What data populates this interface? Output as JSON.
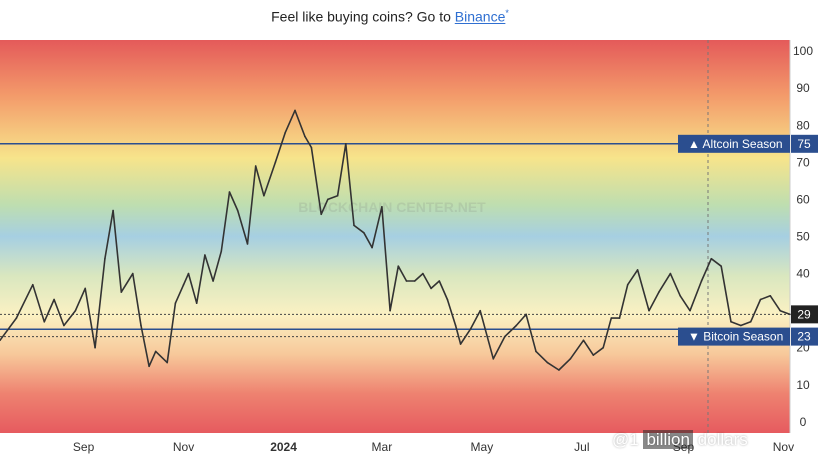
{
  "promo": {
    "text": "Feel like buying coins? Go to",
    "link_label": "Binance",
    "ext_mark": "*"
  },
  "chart_data": {
    "type": "line",
    "title": "",
    "xlabel": "",
    "ylabel": "",
    "ylim": [
      -3,
      103
    ],
    "y_ticks": [
      0,
      10,
      20,
      30,
      40,
      50,
      60,
      70,
      80,
      90,
      100
    ],
    "x_tick_labels": [
      {
        "label": "Sep",
        "x": "2023-09-01"
      },
      {
        "label": "Nov",
        "x": "2023-11-01"
      },
      {
        "label": "2024",
        "x": "2024-01-01"
      },
      {
        "label": "Mar",
        "x": "2024-03-01"
      },
      {
        "label": "May",
        "x": "2024-05-01"
      },
      {
        "label": "Jul",
        "x": "2024-07-01"
      },
      {
        "label": "Sep",
        "x": "2024-09-01"
      },
      {
        "label": "Nov",
        "x": "2024-11-01"
      }
    ],
    "x_range": [
      "2023-07-12",
      "2024-11-05"
    ],
    "grid": false,
    "reference_lines": [
      {
        "label": "Altcoin Season",
        "value": 75,
        "color": "#2b4e8f",
        "marker": "▲"
      },
      {
        "label": "Bitcoin Season",
        "value": 25,
        "color": "#2b4e8f",
        "marker": "▼"
      }
    ],
    "price_labels": [
      {
        "value": 29,
        "text": "29"
      },
      {
        "value": 23,
        "text": "23"
      }
    ],
    "marker_labels": [
      {
        "value": 75,
        "text": "75"
      },
      {
        "value": 23,
        "text": "23"
      }
    ],
    "series": [
      {
        "color": "#333333",
        "x": [
          "2023-07-12",
          "2023-07-22",
          "2023-08-01",
          "2023-08-08",
          "2023-08-14",
          "2023-08-20",
          "2023-08-27",
          "2023-09-02",
          "2023-09-08",
          "2023-09-14",
          "2023-09-19",
          "2023-09-24",
          "2023-10-01",
          "2023-10-06",
          "2023-10-11",
          "2023-10-15",
          "2023-10-22",
          "2023-10-27",
          "2023-11-01",
          "2023-11-04",
          "2023-11-09",
          "2023-11-14",
          "2023-11-19",
          "2023-11-24",
          "2023-11-29",
          "2023-12-04",
          "2023-12-10",
          "2023-12-15",
          "2023-12-20",
          "2023-12-27",
          "2024-01-02",
          "2024-01-08",
          "2024-01-14",
          "2024-01-18",
          "2024-01-24",
          "2024-01-28",
          "2024-02-03",
          "2024-02-08",
          "2024-02-13",
          "2024-02-19",
          "2024-02-24",
          "2024-03-01",
          "2024-03-06",
          "2024-03-11",
          "2024-03-16",
          "2024-03-21",
          "2024-03-26",
          "2024-03-31",
          "2024-04-05",
          "2024-04-10",
          "2024-04-15",
          "2024-04-18",
          "2024-04-24",
          "2024-04-30",
          "2024-05-08",
          "2024-05-15",
          "2024-05-22",
          "2024-05-28",
          "2024-06-03",
          "2024-06-10",
          "2024-06-17",
          "2024-06-24",
          "2024-07-02",
          "2024-07-08",
          "2024-07-14",
          "2024-07-19",
          "2024-07-24",
          "2024-07-29",
          "2024-08-04",
          "2024-08-11",
          "2024-08-17",
          "2024-08-24",
          "2024-08-30",
          "2024-09-05",
          "2024-09-12",
          "2024-09-18",
          "2024-09-24",
          "2024-09-30",
          "2024-10-06",
          "2024-10-12",
          "2024-10-18",
          "2024-10-24",
          "2024-10-30",
          "2024-11-05"
        ],
        "values": [
          22,
          28,
          37,
          27,
          33,
          26,
          30,
          36,
          20,
          44,
          57,
          35,
          40,
          26,
          15,
          19,
          16,
          32,
          37,
          40,
          32,
          45,
          38,
          46,
          62,
          57,
          48,
          69,
          61,
          70,
          78,
          84,
          77,
          74,
          56,
          60,
          61,
          75,
          53,
          51,
          47,
          58,
          30,
          42,
          38,
          38,
          40,
          36,
          38,
          33,
          26,
          21,
          25,
          30,
          17,
          23,
          26,
          29,
          19,
          16,
          14,
          17,
          22,
          18,
          20,
          28,
          28,
          37,
          41,
          30,
          35,
          40,
          34,
          30,
          38,
          44,
          42,
          27,
          26,
          27,
          33,
          34,
          30,
          29
        ]
      }
    ]
  },
  "overlay": {
    "watermark_text": "BLOCKCHAIN CENTER.NET",
    "corner_text_1": "@1",
    "corner_text_2": "billion",
    "corner_text_3": "dollars"
  }
}
